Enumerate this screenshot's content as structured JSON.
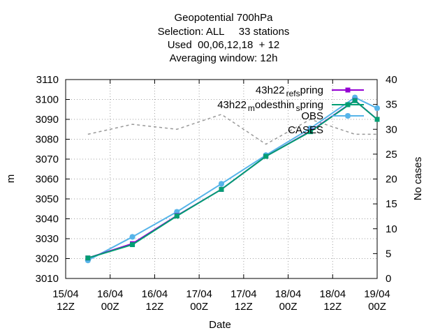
{
  "chart_data": {
    "type": "line",
    "title_lines": [
      "Geopotential 700hPa",
      "Selection: ALL     33 stations",
      "Used  00,06,12,18  + 12",
      "Averaging window: 12h"
    ],
    "xlabel": "Date",
    "ylabel": "m",
    "y2label": "No cases",
    "x_ticks": [
      {
        "line1": "15/04",
        "line2": "12Z"
      },
      {
        "line1": "16/04",
        "line2": "00Z"
      },
      {
        "line1": "16/04",
        "line2": "12Z"
      },
      {
        "line1": "17/04",
        "line2": "00Z"
      },
      {
        "line1": "17/04",
        "line2": "12Z"
      },
      {
        "line1": "18/04",
        "line2": "00Z"
      },
      {
        "line1": "18/04",
        "line2": "12Z"
      },
      {
        "line1": "19/04",
        "line2": "00Z"
      }
    ],
    "x_range": [
      "15/04 12Z",
      "19/04 00Z"
    ],
    "ylim": [
      3010,
      3110
    ],
    "y_ticks": [
      3010,
      3020,
      3030,
      3040,
      3050,
      3060,
      3070,
      3080,
      3090,
      3100,
      3110
    ],
    "y2lim": [
      0,
      40
    ],
    "y2_ticks": [
      0,
      5,
      10,
      15,
      20,
      25,
      30,
      35,
      40
    ],
    "legend_position": "top-right",
    "x_times": [
      "15/04 18Z",
      "16/04 06Z",
      "16/04 18Z",
      "17/04 06Z",
      "17/04 18Z",
      "18/04 06Z",
      "18/04 18Z",
      "19/04 00Z"
    ],
    "series": [
      {
        "name": "43h22_ref_spring",
        "color": "#9400d3",
        "marker": "square",
        "axis": "left",
        "values": [
          3020.3,
          3027.5,
          3041.6,
          3054.8,
          3071.4,
          3084.0,
          3099.5,
          3090.0
        ]
      },
      {
        "name": "43h22_modesthin_spring",
        "color": "#009e73",
        "marker": "square",
        "axis": "left",
        "values": [
          3020.3,
          3027.0,
          3041.4,
          3054.8,
          3071.4,
          3083.8,
          3099.4,
          3090.0
        ]
      },
      {
        "name": "OBS",
        "color": "#56b4e9",
        "marker": "star",
        "axis": "left",
        "values": [
          3019.1,
          3030.9,
          3043.5,
          3057.6,
          3072.0,
          3085.5,
          3101.0,
          3095.6
        ]
      },
      {
        "name": "CASES",
        "color": "#999999",
        "marker": "none",
        "axis": "right",
        "dashed": true,
        "times": [
          "15/04 18Z",
          "16/04 06Z",
          "16/04 18Z",
          "17/04 06Z",
          "17/04 18Z",
          "18/04 06Z",
          "18/04 18Z",
          "19/04 00Z"
        ],
        "values": [
          29,
          31,
          30,
          33,
          27,
          32,
          29,
          29
        ]
      }
    ],
    "legend": [
      {
        "label_main": "43h22",
        "label_sub1": "ref",
        "label_mid": "",
        "label_sub2": "s",
        "label_end": "pring",
        "series": 0
      },
      {
        "label_main": "43h22",
        "label_sub1": "m",
        "label_mid": "odesthin",
        "label_sub2": "s",
        "label_end": "pring",
        "series": 1
      },
      {
        "label_main": "OBS",
        "label_sub1": "",
        "label_mid": "",
        "label_sub2": "",
        "label_end": "",
        "series": 2
      },
      {
        "label_main": "CASES",
        "label_sub1": "",
        "label_mid": "",
        "label_sub2": "",
        "label_end": "",
        "series": 3
      }
    ]
  }
}
